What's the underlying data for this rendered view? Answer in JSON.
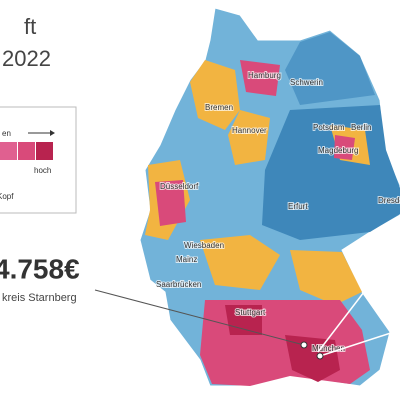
{
  "header": {
    "title": "ft",
    "year": "2022"
  },
  "legend": {
    "label": "en",
    "high": "hoch",
    "unit": "Kopf"
  },
  "highlight": {
    "value": "4.758€",
    "name": "kreis Starnberg"
  },
  "cities": [
    "Hamburg",
    "Schwerin",
    "Bremen",
    "Hannover",
    "Potsdam",
    "Berlin",
    "Magdeburg",
    "Düsseldorf",
    "Erfurt",
    "Dresden",
    "Wiesbaden",
    "Mainz",
    "Saarbrücken",
    "Stuttgart",
    "München"
  ]
}
